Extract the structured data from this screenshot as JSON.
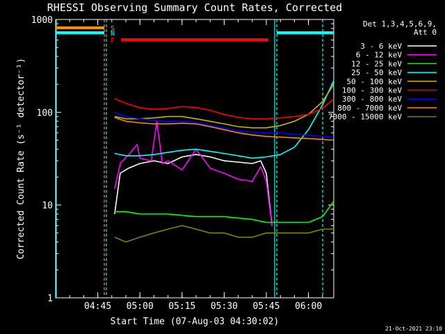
{
  "chart_data": {
    "type": "line",
    "title": "RHESSI Observing Summary Count Rates, Corrected",
    "xlabel": "Start Time (07-Aug-03 04:30:02)",
    "ylabel": "Corrected Count Rate (s⁻¹ detector⁻¹)",
    "y_scale": "log",
    "ylim": [
      1,
      1000
    ],
    "y_ticks": [
      {
        "value": 1,
        "label": "1"
      },
      {
        "value": 10,
        "label": "10"
      },
      {
        "value": 100,
        "label": "100"
      },
      {
        "value": 1000,
        "label": "1000"
      }
    ],
    "xlim": [
      "04:30",
      "06:09"
    ],
    "x_ticks": [
      "04:45",
      "05:00",
      "05:15",
      "05:30",
      "05:45",
      "06:00"
    ],
    "timestamp": "21-Oct-2021 23:10",
    "legend": {
      "header": [
        "Det 1,3,4,5,6,9,",
        "Att 0"
      ],
      "placement": "right"
    },
    "flags": [
      {
        "label": "S",
        "color": "#ff8c00"
      },
      {
        "label": "N",
        "color": "#00ffff"
      },
      {
        "label": "F",
        "color": "#ff0000"
      }
    ],
    "series": [
      {
        "name": "3 - 6 keV",
        "color": "#ffffff",
        "x": [
          "04:51",
          "04:53",
          "04:56",
          "05:00",
          "05:05",
          "05:10",
          "05:15",
          "05:20",
          "05:25",
          "05:30",
          "05:35",
          "05:40",
          "05:43",
          "05:45",
          "05:47"
        ],
        "y": [
          8,
          22,
          25,
          28,
          30,
          28,
          33,
          35,
          33,
          30,
          29,
          28,
          30,
          22,
          6
        ]
      },
      {
        "name": "6 - 12 keV",
        "color": "#ff00ff",
        "x": [
          "04:51",
          "04:53",
          "04:56",
          "04:59",
          "05:00",
          "05:04",
          "05:06",
          "05:08",
          "05:10",
          "05:15",
          "05:20",
          "05:25",
          "05:30",
          "05:35",
          "05:40",
          "05:43",
          "05:45",
          "05:47"
        ],
        "y": [
          15,
          28,
          35,
          45,
          32,
          30,
          80,
          28,
          30,
          24,
          40,
          25,
          22,
          19,
          18,
          26,
          18,
          6
        ]
      },
      {
        "name": "12 - 25 keV",
        "color": "#00ff00",
        "x": [
          "04:51",
          "04:55",
          "05:00",
          "05:10",
          "05:20",
          "05:30",
          "05:40",
          "05:45",
          "05:50",
          "05:55",
          "06:00",
          "06:05",
          "06:09"
        ],
        "y": [
          8.5,
          8.5,
          8,
          8,
          7.5,
          7.5,
          7,
          6.5,
          6.5,
          6.5,
          6.5,
          7.5,
          11
        ]
      },
      {
        "name": "25 - 50 keV",
        "color": "#00ffff",
        "x": [
          "04:51",
          "04:55",
          "05:00",
          "05:05",
          "05:10",
          "05:15",
          "05:20",
          "05:25",
          "05:30",
          "05:35",
          "05:40",
          "05:45",
          "05:50",
          "05:55",
          "06:00",
          "06:05",
          "06:09"
        ],
        "y": [
          36,
          34,
          34,
          35,
          37,
          39,
          40,
          38,
          36,
          34,
          32,
          33,
          35,
          42,
          65,
          120,
          220
        ]
      },
      {
        "name": "50 - 100 keV",
        "color": "#c8b400",
        "x": [
          "04:51",
          "04:55",
          "05:00",
          "05:05",
          "05:10",
          "05:15",
          "05:20",
          "05:25",
          "05:30",
          "05:35",
          "05:40",
          "05:45",
          "05:50",
          "05:55",
          "06:00",
          "06:05",
          "06:09"
        ],
        "y": [
          90,
          85,
          85,
          87,
          90,
          90,
          85,
          80,
          75,
          70,
          68,
          68,
          72,
          80,
          95,
          130,
          200
        ]
      },
      {
        "name": "100 - 300 keV",
        "color": "#ff0000",
        "x": [
          "04:51",
          "04:55",
          "05:00",
          "05:05",
          "05:10",
          "05:15",
          "05:20",
          "05:25",
          "05:30",
          "05:35",
          "05:40",
          "05:45",
          "05:50",
          "05:55",
          "06:00",
          "06:05",
          "06:09"
        ],
        "y": [
          140,
          125,
          112,
          108,
          110,
          115,
          113,
          105,
          95,
          88,
          85,
          85,
          87,
          90,
          95,
          110,
          140
        ]
      },
      {
        "name": "300 - 800 keV",
        "color": "#0000ff",
        "x": [
          "04:51",
          "04:55",
          "05:00",
          "05:05",
          "05:10",
          "05:15",
          "05:20",
          "05:25",
          "05:30",
          "05:35",
          "05:40",
          "05:45",
          "05:50",
          "05:55",
          "06:00",
          "06:05",
          "06:09"
        ],
        "y": [
          100,
          90,
          85,
          82,
          80,
          80,
          78,
          72,
          68,
          63,
          61,
          60,
          60,
          58,
          57,
          55,
          54
        ]
      },
      {
        "name": "800 - 7000 keV",
        "color": "#ff8c00",
        "x": [
          "04:51",
          "04:55",
          "05:00",
          "05:05",
          "05:10",
          "05:15",
          "05:20",
          "05:25",
          "05:30",
          "05:35",
          "05:40",
          "05:45",
          "05:50",
          "05:55",
          "06:00",
          "06:05",
          "06:09"
        ],
        "y": [
          88,
          80,
          77,
          75,
          75,
          76,
          75,
          70,
          65,
          60,
          57,
          55,
          54,
          53,
          52,
          51,
          50
        ]
      },
      {
        "name": "7000 - 15000 keV",
        "color": "#808000",
        "x": [
          "04:51",
          "04:55",
          "05:00",
          "05:05",
          "05:10",
          "05:15",
          "05:20",
          "05:25",
          "05:30",
          "05:35",
          "05:40",
          "05:45",
          "05:50",
          "05:55",
          "06:00",
          "06:05",
          "06:09"
        ],
        "y": [
          4.5,
          4,
          4.5,
          5,
          5.5,
          6,
          5.5,
          5,
          5,
          4.5,
          4.5,
          5,
          5,
          5,
          5,
          5.5,
          5.5
        ]
      }
    ]
  }
}
